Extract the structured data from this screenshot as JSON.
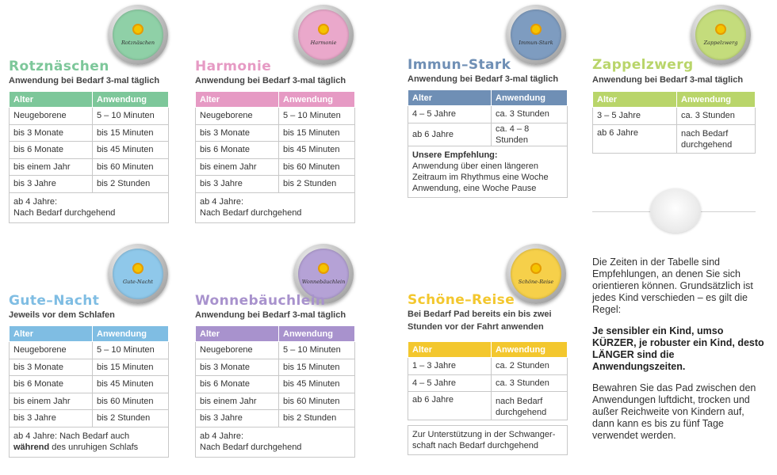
{
  "colors": {
    "rotznaeschen": "#7dc79a",
    "harmonie": "#e69ac4",
    "immun": "#6f8fb5",
    "zappel": "#b9d56a",
    "gute": "#7fbde3",
    "wonne": "#a892cd",
    "schoene": "#f3c72e"
  },
  "headers": {
    "age": "Alter",
    "use": "Anwendung"
  },
  "products": {
    "rotznaeschen": {
      "tin_name": "Rotznäschen",
      "title": "Rotznäschen",
      "subtitle": "Anwendung bei Bedarf 3-mal täglich",
      "rows": [
        [
          "Neugeborene",
          "5 – 10 Minuten"
        ],
        [
          "bis 3 Monate",
          "bis 15 Minuten"
        ],
        [
          "bis 6 Monate",
          "bis 45 Minuten"
        ],
        [
          "bis einem Jahr",
          "bis 60 Minuten"
        ],
        [
          "bis 3 Jahre",
          "bis 2 Stunden"
        ]
      ],
      "note_line1": "ab 4 Jahre:",
      "note_line2": "Nach Bedarf durchgehend"
    },
    "harmonie": {
      "tin_name": "Harmonie",
      "title": "Harmonie",
      "subtitle": "Anwendung bei Bedarf 3-mal täglich",
      "rows": [
        [
          "Neugeborene",
          "5 – 10 Minuten"
        ],
        [
          "bis 3 Monate",
          "bis 15 Minuten"
        ],
        [
          "bis 6 Monate",
          "bis 45 Minuten"
        ],
        [
          "bis einem Jahr",
          "bis 60 Minuten"
        ],
        [
          "bis 3 Jahre",
          "bis 2 Stunden"
        ]
      ],
      "note_line1": "ab 4 Jahre:",
      "note_line2": "Nach Bedarf durchgehend"
    },
    "immun": {
      "tin_name": "Immun-Stark",
      "title": "Immun–Stark",
      "subtitle": "Anwendung bei Bedarf 3-mal täglich",
      "rows": [
        [
          "4 – 5 Jahre",
          "ca. 3 Stunden"
        ],
        [
          "ab 6 Jahre",
          "ca. 4 – 8 Stunden"
        ]
      ],
      "note_bold": "Unsere Empfehlung:",
      "note_text": "Anwendung über einen längeren Zeitraum im Rhythmus eine Woche Anwendung, eine Woche Pause"
    },
    "zappel": {
      "tin_name": "Zappelzwerg",
      "title": "Zappelzwerg",
      "subtitle": "Anwendung bei Bedarf 3-mal täglich",
      "rows": [
        [
          "3 – 5 Jahre",
          "ca. 3 Stunden"
        ],
        [
          "ab 6 Jahre",
          "nach Bedarf durchgehend"
        ]
      ]
    },
    "gute": {
      "tin_name": "Gute-Nacht",
      "title": "Gute–Nacht",
      "subtitle": "Jeweils vor dem Schlafen",
      "rows": [
        [
          "Neugeborene",
          "5 – 10 Minuten"
        ],
        [
          "bis 3 Monate",
          "bis 15 Minuten"
        ],
        [
          "bis 6 Monate",
          "bis 45 Minuten"
        ],
        [
          "bis einem Jahr",
          "bis 60 Minuten"
        ],
        [
          "bis 3 Jahre",
          "bis 2 Stunden"
        ]
      ],
      "note_line1": "ab 4 Jahre: Nach Bedarf auch",
      "note_bold": "während",
      "note_line2": " des unruhigen Schlafs"
    },
    "wonne": {
      "tin_name": "Wonnebäuchlein",
      "title": "Wonnebäuchlein",
      "subtitle": "Anwendung bei Bedarf 3-mal täglich",
      "rows": [
        [
          "Neugeborene",
          "5 – 10 Minuten"
        ],
        [
          "bis 3 Monate",
          "bis 15 Minuten"
        ],
        [
          "bis 6 Monate",
          "bis 45 Minuten"
        ],
        [
          "bis einem Jahr",
          "bis 60 Minuten"
        ],
        [
          "bis 3 Jahre",
          "bis 2 Stunden"
        ]
      ],
      "note_line1": "ab 4 Jahre:",
      "note_line2": "Nach Bedarf durchgehend"
    },
    "schoene": {
      "tin_name": "Schöne-Reise",
      "title": "Schöne–Reise",
      "subtitle_line1": "Bei Bedarf Pad bereits ein bis zwei",
      "subtitle_line2": "Stunden vor der Fahrt anwenden",
      "rows": [
        [
          "1 – 3 Jahre",
          "ca. 2 Stunden"
        ],
        [
          "4 – 5 Jahre",
          "ca. 3 Stunden"
        ],
        [
          "ab 6 Jahre",
          "nach Bedarf durchgehend"
        ]
      ],
      "note_text": "Zur Unterstützung in der Schwanger-schaft nach Bedarf durchgehend"
    }
  },
  "info": {
    "intro": "Die Zeiten in der Tabelle sind Empfehlungen, an denen Sie sich orientieren können. Grundsätzlich ist jedes Kind verschieden – es gilt die Regel:",
    "rule": "Je sensibler ein Kind, umso KÜRZER, je robuster ein Kind, desto LÄNGER sind die Anwendungszeiten.",
    "storage": "Bewahren Sie das Pad zwischen den Anwendungen luftdicht, trocken und außer Reichweite von Kindern auf, dann kann es bis zu fünf Tage verwendet werden."
  }
}
